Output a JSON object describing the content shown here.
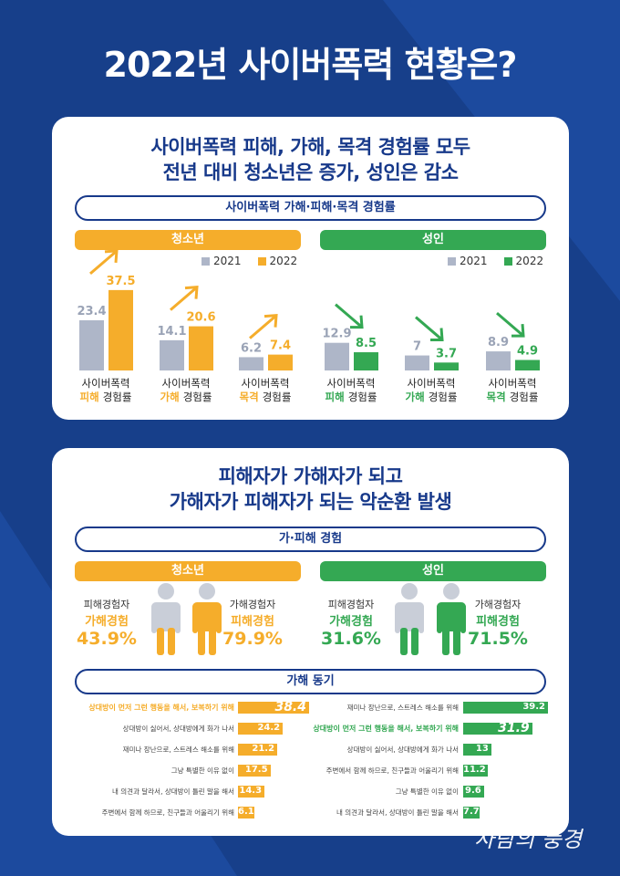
{
  "title": "2022년 사이버폭력 현황은?",
  "section1": {
    "headline_line1": "사이버폭력 피해, 가해, 목격 경험률 모두",
    "headline_line2": "전년 대비 청소년은 증가, 성인은 감소",
    "pill": "사이버폭력 가해·피해·목격 경험률",
    "youth_header": "청소년",
    "adult_header": "성인",
    "legend": [
      "2021",
      "2022"
    ]
  },
  "section2": {
    "headline_line1": "피해자가 가해자가 되고",
    "headline_line2": "가해자가 피해자가 되는 악순환 발생",
    "pill": "가·피해 경험",
    "youth_header": "청소년",
    "adult_header": "성인",
    "motive_pill": "가해 동기"
  },
  "colors": {
    "navy": "#17398a",
    "orange": "#f5ad2b",
    "green": "#34a853",
    "gray": "#aeb6c8"
  },
  "watermark": "사람의 풍경",
  "chart_data": [
    {
      "type": "bar",
      "group": "청소년",
      "legend": [
        "2021",
        "2022"
      ],
      "categories": [
        {
          "line1": "사이버폭력",
          "keyword": "피해",
          "suffix": "경험률"
        },
        {
          "line1": "사이버폭력",
          "keyword": "가해",
          "suffix": "경험률"
        },
        {
          "line1": "사이버폭력",
          "keyword": "목격",
          "suffix": "경험률"
        }
      ],
      "series": [
        {
          "name": "2021",
          "values": [
            23.4,
            14.1,
            6.2
          ]
        },
        {
          "name": "2022",
          "values": [
            37.5,
            20.6,
            7.4
          ]
        }
      ],
      "trend": "up"
    },
    {
      "type": "bar",
      "group": "성인",
      "legend": [
        "2021",
        "2022"
      ],
      "categories": [
        {
          "line1": "사이버폭력",
          "keyword": "피해",
          "suffix": "경험률"
        },
        {
          "line1": "사이버폭력",
          "keyword": "가해",
          "suffix": "경험률"
        },
        {
          "line1": "사이버폭력",
          "keyword": "목격",
          "suffix": "경험률"
        }
      ],
      "series": [
        {
          "name": "2021",
          "values": [
            12.9,
            7.0,
            8.9
          ]
        },
        {
          "name": "2022",
          "values": [
            8.5,
            3.7,
            4.9
          ]
        }
      ],
      "trend": "down"
    },
    {
      "type": "table",
      "group": "청소년",
      "items": [
        {
          "label": "피해경험자",
          "sublabel": "가해경험",
          "value": "43.9%"
        },
        {
          "label": "가해경험자",
          "sublabel": "피해경험",
          "value": "79.9%"
        }
      ]
    },
    {
      "type": "table",
      "group": "성인",
      "items": [
        {
          "label": "피해경험자",
          "sublabel": "가해경험",
          "value": "31.6%"
        },
        {
          "label": "가해경험자",
          "sublabel": "피해경험",
          "value": "71.5%"
        }
      ]
    },
    {
      "type": "bar",
      "group": "청소년",
      "orientation": "horizontal",
      "categories": [
        "상대방이 먼저 그런 행동을 해서, 보복하기 위해",
        "상대방이 싫어서, 상대방에게 화가 나서",
        "재미나 장난으로, 스트레스 해소를 위해",
        "그냥 특별한 이유 없이",
        "내 의견과 달라서, 상대방이 틀린 말을 해서",
        "주변에서 함께 하므로, 친구들과 어울리기 위해"
      ],
      "values": [
        38.4,
        24.2,
        21.2,
        17.5,
        14.3,
        6.1
      ],
      "highlight_index": 0
    },
    {
      "type": "bar",
      "group": "성인",
      "orientation": "horizontal",
      "categories": [
        "재미나 장난으로, 스트레스 해소를 위해",
        "상대방이 먼저 그런 행동을 해서, 보복하기 위해",
        "상대방이 싫어서, 상대방에게 화가 나서",
        "주변에서 함께 하므로, 친구들과 어울리기 위해",
        "그냥 특별한 이유 없이",
        "내 의견과 달라서, 상대방이 틀린 말을 해서"
      ],
      "values": [
        39.2,
        31.9,
        13.0,
        11.2,
        9.6,
        7.7
      ],
      "highlight_index": 1
    }
  ]
}
